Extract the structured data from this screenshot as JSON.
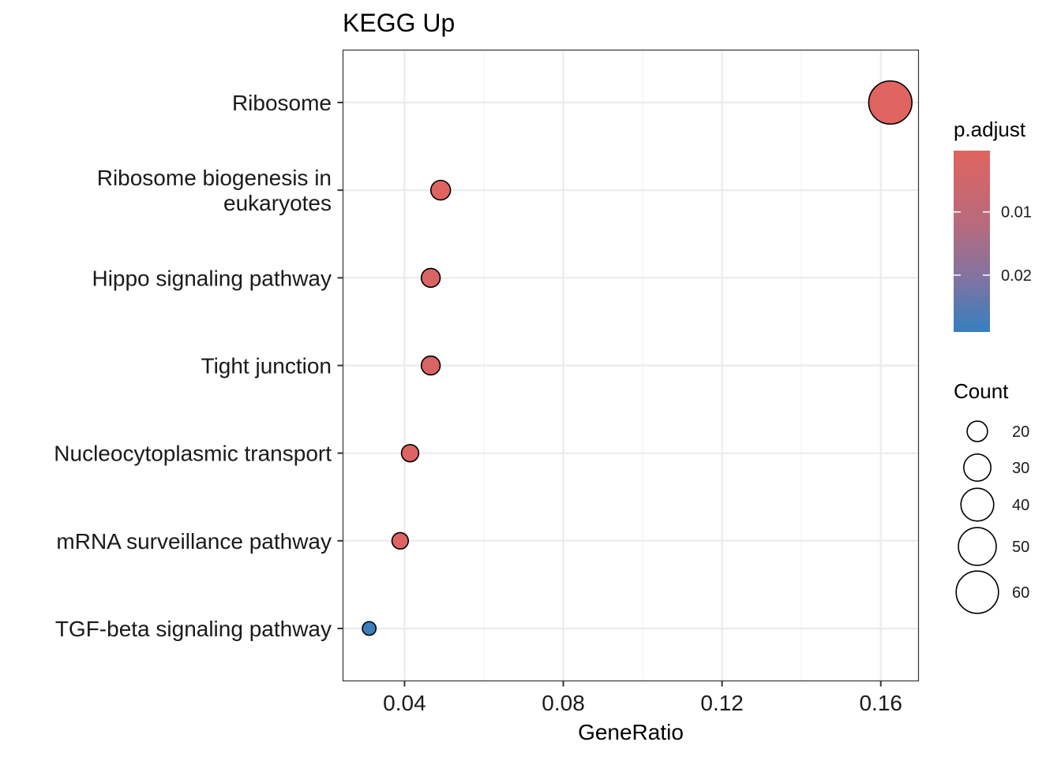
{
  "chart_data": {
    "type": "scatter",
    "title": "KEGG Up",
    "xlabel": "GeneRatio",
    "ylabel": "",
    "xlim": [
      0.0245,
      0.1695
    ],
    "x_ticks": [
      {
        "value": 0.04,
        "label": "0.04"
      },
      {
        "value": 0.08,
        "label": "0.08"
      },
      {
        "value": 0.12,
        "label": "0.12"
      },
      {
        "value": 0.16,
        "label": "0.16"
      }
    ],
    "grid": true,
    "points": [
      {
        "term": [
          "Ribosome"
        ],
        "gene_ratio": 0.1624,
        "count": 62,
        "p_adjust": 0.0005,
        "color": "#e0645f"
      },
      {
        "term": [
          "Ribosome biogenesis in",
          "eukaryotes"
        ],
        "gene_ratio": 0.0491,
        "count": 19,
        "p_adjust": 0.001,
        "color": "#df6460"
      },
      {
        "term": [
          "Hippo signaling pathway"
        ],
        "gene_ratio": 0.0466,
        "count": 18,
        "p_adjust": 0.003,
        "color": "#da6464"
      },
      {
        "term": [
          "Tight junction"
        ],
        "gene_ratio": 0.0466,
        "count": 18,
        "p_adjust": 0.0035,
        "color": "#d96465"
      },
      {
        "term": [
          "Nucleocytoplasmic transport"
        ],
        "gene_ratio": 0.0414,
        "count": 16,
        "p_adjust": 0.0015,
        "color": "#dd6462"
      },
      {
        "term": [
          "mRNA surveillance pathway"
        ],
        "gene_ratio": 0.0389,
        "count": 15,
        "p_adjust": 0.0015,
        "color": "#dd6462"
      },
      {
        "term": [
          "TGF-beta signaling pathway"
        ],
        "gene_ratio": 0.0311,
        "count": 12,
        "p_adjust": 0.0285,
        "color": "#3c7fbd"
      }
    ],
    "legend_color": {
      "title": "p.adjust",
      "placement": "right",
      "min": 0.0003,
      "max": 0.029,
      "low_color": "#e0645f",
      "high_color": "#357fbf",
      "ticks": [
        {
          "value": 0.01,
          "label": "0.01"
        },
        {
          "value": 0.02,
          "label": "0.02"
        }
      ]
    },
    "legend_size": {
      "title": "Count",
      "placement": "right",
      "entries": [
        {
          "value": 20,
          "label": "20"
        },
        {
          "value": 30,
          "label": "30"
        },
        {
          "value": 40,
          "label": "40"
        },
        {
          "value": 50,
          "label": "50"
        },
        {
          "value": 60,
          "label": "60"
        }
      ]
    }
  }
}
